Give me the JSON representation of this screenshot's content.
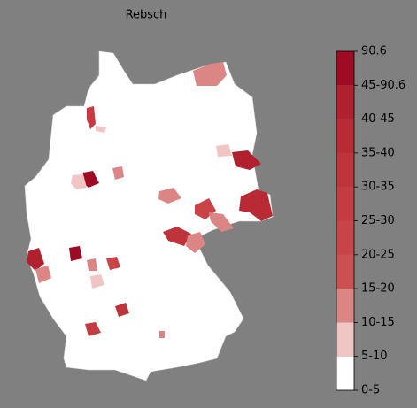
{
  "title": "Rebsch",
  "legend": {
    "labels": [
      "0-5",
      "5-10",
      "10-15",
      "15-20",
      "20-25",
      "25-30",
      "30-35",
      "35-40",
      "40-45",
      "45-90.6",
      "90.6"
    ],
    "colors": [
      "#ffffff",
      "#f2c5c5",
      "#dc8585",
      "#cd5050",
      "#c84447",
      "#c43c41",
      "#bf333b",
      "#b92a35",
      "#b0202f",
      "#9e0b22"
    ]
  }
}
